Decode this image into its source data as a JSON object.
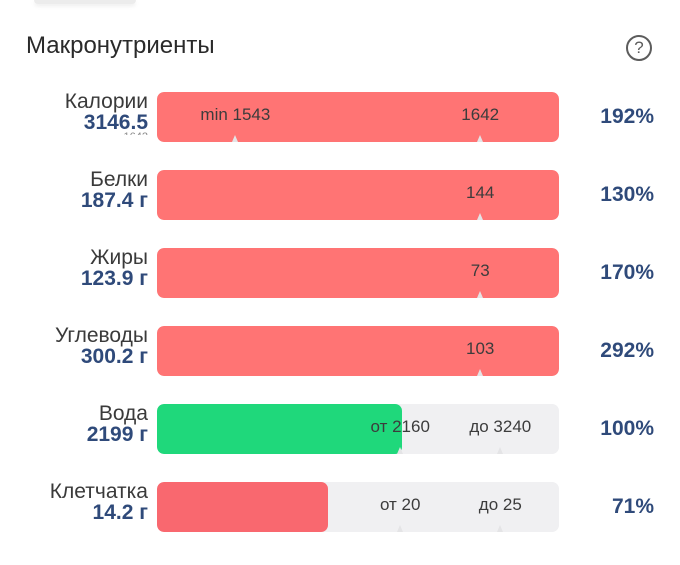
{
  "header": {
    "title": "Макронутриенты",
    "help_symbol": "?"
  },
  "colors": {
    "over": "#ff7474",
    "ok": "#1fd87b",
    "under": "#f9686f",
    "track": "#f0f0f2",
    "value_text": "#2f4a7a"
  },
  "rows": [
    {
      "label": "Калории",
      "value": "3146.5",
      "percent": "192%",
      "progress": 1.0,
      "color": "#ff7474",
      "markers": [
        {
          "text": "min 1543",
          "at": 0.195
        },
        {
          "text": "1642",
          "at": 0.804
        }
      ],
      "partial_text": "1642"
    },
    {
      "label": "Белки",
      "value": "187.4 г",
      "percent": "130%",
      "progress": 1.0,
      "color": "#ff7474",
      "markers": [
        {
          "text": "144",
          "at": 0.804
        }
      ]
    },
    {
      "label": "Жиры",
      "value": "123.9 г",
      "percent": "170%",
      "progress": 1.0,
      "color": "#ff7474",
      "markers": [
        {
          "text": "73",
          "at": 0.804
        }
      ]
    },
    {
      "label": "Углеводы",
      "value": "300.2 г",
      "percent": "292%",
      "progress": 1.0,
      "color": "#ff7474",
      "markers": [
        {
          "text": "103",
          "at": 0.804
        }
      ]
    },
    {
      "label": "Вода",
      "value": "2199 г",
      "percent": "100%",
      "progress": 0.61,
      "color": "#1fd87b",
      "markers": [
        {
          "text": "от 2160",
          "at": 0.605
        },
        {
          "text": "до 3240",
          "at": 0.854
        }
      ]
    },
    {
      "label": "Клетчатка",
      "value": "14.2 г",
      "percent": "71%",
      "progress": 0.425,
      "color": "#f9686f",
      "markers": [
        {
          "text": "от 20",
          "at": 0.605
        },
        {
          "text": "до 25",
          "at": 0.854
        }
      ]
    }
  ]
}
